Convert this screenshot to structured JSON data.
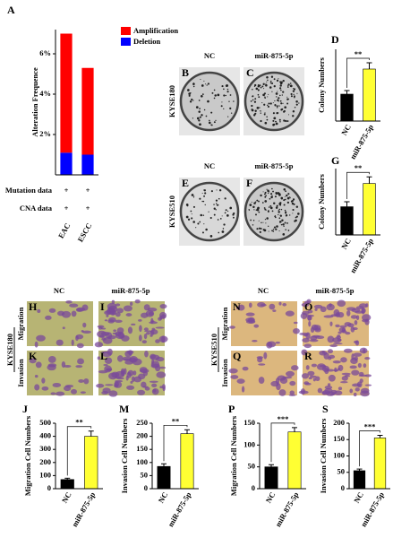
{
  "chart_data": [
    {
      "type": "bar",
      "stacked": true,
      "letter": "A",
      "y_label": "Alteration Frequence",
      "categories": [
        "EAC",
        "ESCC"
      ],
      "series": [
        {
          "name": "Amplification",
          "color": "#ff0000",
          "values": [
            5.9,
            4.3
          ]
        },
        {
          "name": "Deletion",
          "color": "#0000ff",
          "values": [
            1.1,
            1.0
          ]
        }
      ],
      "ylim": [
        0,
        7.2
      ],
      "yticks": [
        {
          "value": 2,
          "label": "2%"
        },
        {
          "value": 4,
          "label": "4%"
        },
        {
          "value": 6,
          "label": "6%"
        }
      ]
    },
    {
      "type": "bar",
      "letter": "D",
      "y_label": "Colony Numbers",
      "categories": [
        "NC",
        "miR-875-5p"
      ],
      "values": [
        300,
        580
      ],
      "errors": [
        40,
        70
      ],
      "colors": [
        "#000000",
        "#ffff33"
      ],
      "significance": "**",
      "ylim": [
        0,
        800
      ]
    },
    {
      "type": "bar",
      "letter": "G",
      "y_label": "Colony Numbers",
      "categories": [
        "NC",
        "miR-875-5p"
      ],
      "values": [
        170,
        310
      ],
      "errors": [
        30,
        40
      ],
      "colors": [
        "#000000",
        "#ffff33"
      ],
      "significance": "**",
      "ylim": [
        0,
        400
      ]
    },
    {
      "type": "bar",
      "letter": "J",
      "y_label": "Migration Cell Numbers",
      "categories": [
        "NC",
        "miR-875-5p"
      ],
      "values": [
        70,
        400
      ],
      "errors": [
        10,
        40
      ],
      "colors": [
        "#000000",
        "#ffff33"
      ],
      "significance": "**",
      "ylim": [
        0,
        500
      ],
      "yticks": [
        0,
        100,
        200,
        300,
        400,
        500
      ]
    },
    {
      "type": "bar",
      "letter": "M",
      "y_label": "Invasion Cell Numbers",
      "categories": [
        "NC",
        "miR-875-5p"
      ],
      "values": [
        85,
        210
      ],
      "errors": [
        10,
        15
      ],
      "colors": [
        "#000000",
        "#ffff33"
      ],
      "significance": "**",
      "ylim": [
        0,
        250
      ],
      "yticks": [
        0,
        50,
        100,
        150,
        200,
        250
      ]
    },
    {
      "type": "bar",
      "letter": "P",
      "y_label": "Migration Cell Numbers",
      "categories": [
        "NC",
        "miR-875-5p"
      ],
      "values": [
        50,
        130
      ],
      "errors": [
        5,
        10
      ],
      "colors": [
        "#000000",
        "#ffff33"
      ],
      "significance": "***",
      "ylim": [
        0,
        150
      ],
      "yticks": [
        0,
        50,
        100,
        150
      ]
    },
    {
      "type": "bar",
      "letter": "S",
      "y_label": "Invasion Cell Numbers",
      "categories": [
        "NC",
        "miR-875-5p"
      ],
      "values": [
        55,
        155
      ],
      "errors": [
        5,
        8
      ],
      "colors": [
        "#000000",
        "#ffff33"
      ],
      "significance": "***",
      "ylim": [
        0,
        200
      ],
      "yticks": [
        0,
        50,
        100,
        150,
        200
      ]
    }
  ],
  "alteration_table": {
    "rows": [
      {
        "label": "Mutation data",
        "cells": [
          "+",
          "+"
        ]
      },
      {
        "label": "CNA data",
        "cells": [
          "+",
          "+"
        ]
      }
    ]
  },
  "colony_panel": {
    "rows": [
      {
        "cell_line": "KYSE180",
        "columns": [
          "NC",
          "miR-875-5p"
        ],
        "letters": [
          "B",
          "C"
        ]
      },
      {
        "cell_line": "KYSE510",
        "columns": [
          "NC",
          "miR-875-5p"
        ],
        "letters": [
          "E",
          "F"
        ]
      }
    ]
  },
  "transwell_panels": [
    {
      "cell_line": "KYSE180",
      "columns": [
        "NC",
        "miR-875-5p"
      ],
      "rows": [
        {
          "assay": "Migration",
          "letters": [
            "H",
            "I"
          ]
        },
        {
          "assay": "Invasion",
          "letters": [
            "K",
            "L"
          ]
        }
      ]
    },
    {
      "cell_line": "KYSE510",
      "columns": [
        "NC",
        "miR-875-5p"
      ],
      "rows": [
        {
          "assay": "Migration",
          "letters": [
            "N",
            "O"
          ]
        },
        {
          "assay": "Invasion",
          "letters": [
            "Q",
            "R"
          ]
        }
      ]
    }
  ]
}
